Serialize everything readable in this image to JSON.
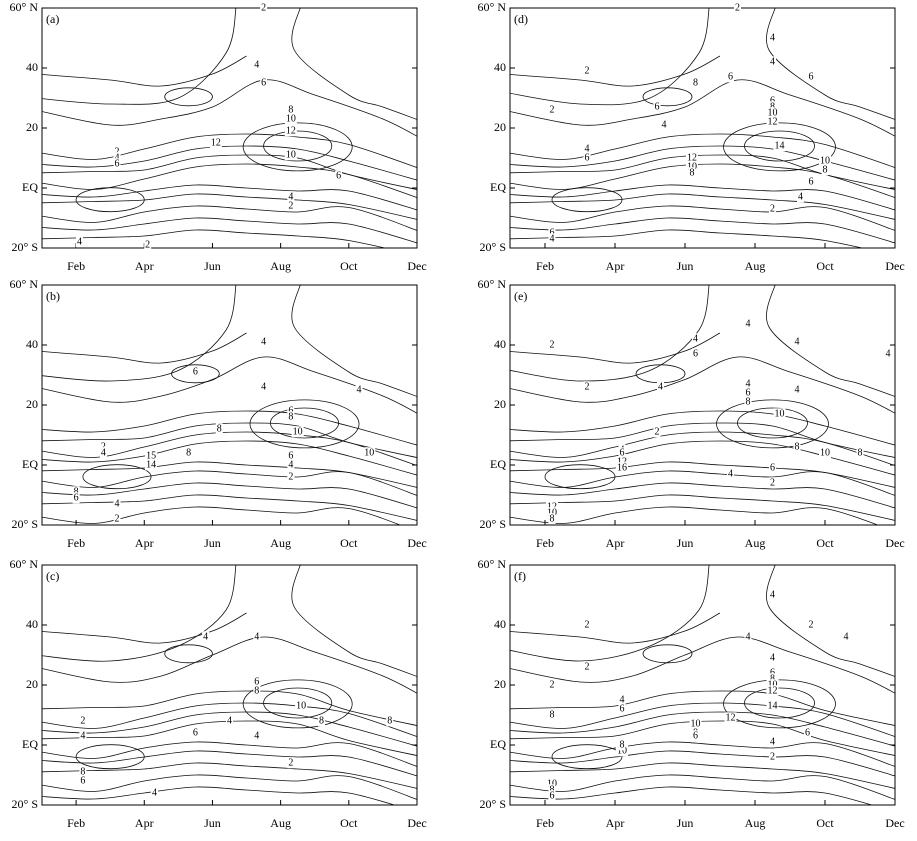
{
  "chart_data": [
    {
      "type": "contour",
      "title": "(a)",
      "categories": [
        "Feb",
        "Apr",
        "Jun",
        "Aug",
        "Oct",
        "Dec"
      ],
      "ylim": [
        -20,
        60
      ],
      "yticks": [
        {
          "value": -20,
          "label": "20° S"
        },
        {
          "value": 0,
          "label": "EQ"
        },
        20,
        40,
        {
          "value": 60,
          "label": "60° N"
        }
      ],
      "contour_labels": [
        2,
        4,
        6,
        8,
        10,
        12,
        12,
        10,
        6,
        4,
        2,
        2,
        4,
        6,
        4,
        2
      ]
    },
    {
      "type": "contour",
      "title": "(b)",
      "categories": [
        "Feb",
        "Apr",
        "Jun",
        "Aug",
        "Oct",
        "Dec"
      ],
      "ylim": [
        -20,
        60
      ],
      "yticks": [
        {
          "value": -20,
          "label": "20° S"
        },
        {
          "value": 0,
          "label": "EQ"
        },
        20,
        40,
        {
          "value": 60,
          "label": "60° N"
        }
      ],
      "contour_labels": [
        4,
        6,
        4,
        4,
        6,
        8,
        8,
        10,
        2,
        4,
        15,
        14,
        8,
        8,
        6,
        4,
        2,
        6,
        4,
        2,
        10
      ]
    },
    {
      "type": "contour",
      "title": "(c)",
      "categories": [
        "Feb",
        "Apr",
        "Jun",
        "Aug",
        "Oct",
        "Dec"
      ],
      "ylim": [
        -20,
        60
      ],
      "yticks": [
        {
          "value": -20,
          "label": "20° S"
        },
        {
          "value": 0,
          "label": "EQ"
        },
        20,
        40,
        {
          "value": 60,
          "label": "60° N"
        }
      ],
      "contour_labels": [
        4,
        4,
        6,
        8,
        10,
        8,
        4,
        4,
        2,
        4,
        6,
        8,
        6,
        4,
        2,
        8
      ]
    },
    {
      "type": "contour",
      "title": "(d)",
      "categories": [
        "Feb",
        "Apr",
        "Jun",
        "Aug",
        "Oct",
        "Dec"
      ],
      "ylim": [
        -20,
        60
      ],
      "yticks": [
        {
          "value": -20,
          "label": "20° S"
        },
        {
          "value": 0,
          "label": "EQ"
        },
        20,
        40,
        {
          "value": 60,
          "label": "60° N"
        }
      ],
      "contour_labels": [
        2,
        4,
        4,
        8,
        6,
        6,
        6,
        2,
        4,
        2,
        4,
        6,
        6,
        8,
        10,
        12,
        14,
        12,
        10,
        8,
        10,
        8,
        6,
        4,
        2,
        6,
        4
      ]
    },
    {
      "type": "contour",
      "title": "(e)",
      "categories": [
        "Feb",
        "Apr",
        "Jun",
        "Aug",
        "Oct",
        "Dec"
      ],
      "ylim": [
        -20,
        60
      ],
      "yticks": [
        {
          "value": -20,
          "label": "20° S"
        },
        {
          "value": 0,
          "label": "EQ"
        },
        20,
        40,
        {
          "value": 60,
          "label": "60° N"
        }
      ],
      "contour_labels": [
        4,
        4,
        2,
        4,
        6,
        4,
        2,
        4,
        4,
        4,
        6,
        8,
        10,
        2,
        8,
        10,
        8,
        4,
        6,
        12,
        16,
        6,
        4,
        2,
        12,
        10,
        8
      ]
    },
    {
      "type": "contour",
      "title": "(f)",
      "categories": [
        "Feb",
        "Apr",
        "Jun",
        "Aug",
        "Oct",
        "Dec"
      ],
      "ylim": [
        -20,
        60
      ],
      "yticks": [
        {
          "value": -20,
          "label": "20° S"
        },
        {
          "value": 0,
          "label": "EQ"
        },
        20,
        40,
        {
          "value": 60,
          "label": "60° N"
        }
      ],
      "contour_labels": [
        4,
        2,
        2,
        4,
        4,
        2,
        2,
        4,
        4,
        6,
        8,
        6,
        8,
        10,
        12,
        14,
        12,
        10,
        8,
        6,
        4,
        6,
        10,
        8,
        2,
        10,
        8,
        6
      ]
    }
  ]
}
